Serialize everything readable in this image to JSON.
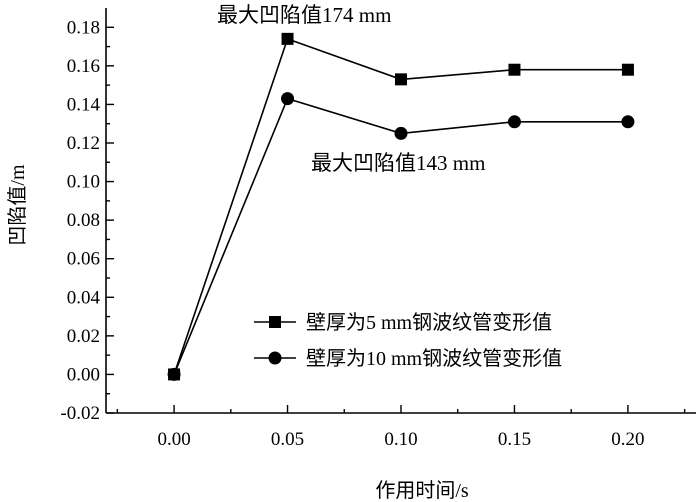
{
  "chart_data": {
    "type": "line",
    "title": "",
    "xlabel": "作用时间/s",
    "ylabel": "凹陷值/m",
    "xlim": [
      -0.03,
      0.23
    ],
    "ylim": [
      -0.02,
      0.19
    ],
    "xticks": [
      0.0,
      0.05,
      0.1,
      0.15,
      0.2
    ],
    "xtick_labels": [
      "0.00",
      "0.05",
      "0.10",
      "0.15",
      "0.20"
    ],
    "yticks": [
      -0.02,
      0.0,
      0.02,
      0.04,
      0.06,
      0.08,
      0.1,
      0.12,
      0.14,
      0.16,
      0.18
    ],
    "ytick_labels": [
      "-0.02",
      "0.00",
      "0.02",
      "0.04",
      "0.06",
      "0.08",
      "0.10",
      "0.12",
      "0.14",
      "0.16",
      "0.18"
    ],
    "x": [
      0.0,
      0.05,
      0.1,
      0.15,
      0.2
    ],
    "series": [
      {
        "name": "壁厚为5 mm钢波纹管变形值",
        "marker": "square",
        "values": [
          0.0,
          0.174,
          0.153,
          0.158,
          0.158
        ]
      },
      {
        "name": "壁厚为10 mm钢波纹管变形值",
        "marker": "circle",
        "values": [
          0.0,
          0.143,
          0.125,
          0.131,
          0.131
        ]
      }
    ],
    "annotations": [
      {
        "text": "最大凹陷值174 mm",
        "x": 0.05,
        "y": 0.174
      },
      {
        "text": "最大凹陷值143 mm",
        "x": 0.1,
        "y": 0.125
      }
    ],
    "legend_position": "bottom-right",
    "grid": false
  }
}
